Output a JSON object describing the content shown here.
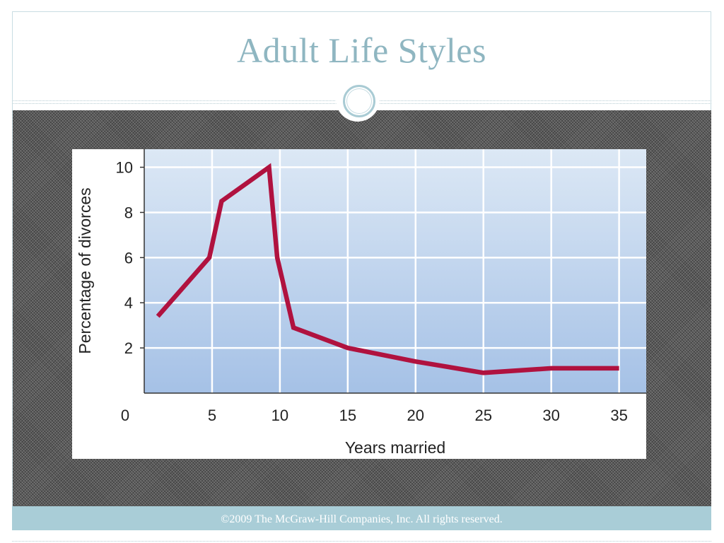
{
  "slide": {
    "title": "Adult Life Styles",
    "footer": "©2009 The McGraw-Hill Companies, Inc. All rights reserved."
  },
  "chart_data": {
    "type": "line",
    "xlabel": "Years married",
    "ylabel": "Percentage of divorces",
    "xlim": [
      0,
      37
    ],
    "ylim": [
      0,
      10.8
    ],
    "xticks": [
      0,
      5,
      10,
      15,
      20,
      25,
      30,
      35
    ],
    "yticks": [
      2,
      4,
      6,
      8,
      10
    ],
    "grid": true,
    "series": [
      {
        "color": "#b0123f",
        "x": [
          1,
          4.8,
          5.7,
          9.2,
          9.8,
          11,
          15,
          20,
          25,
          30,
          35
        ],
        "y": [
          3.4,
          6.0,
          8.5,
          10.0,
          6.0,
          2.9,
          2.0,
          1.4,
          0.9,
          1.1,
          1.1
        ]
      }
    ],
    "plot_background": [
      "#dce8f5",
      "#a5c1e6"
    ]
  }
}
